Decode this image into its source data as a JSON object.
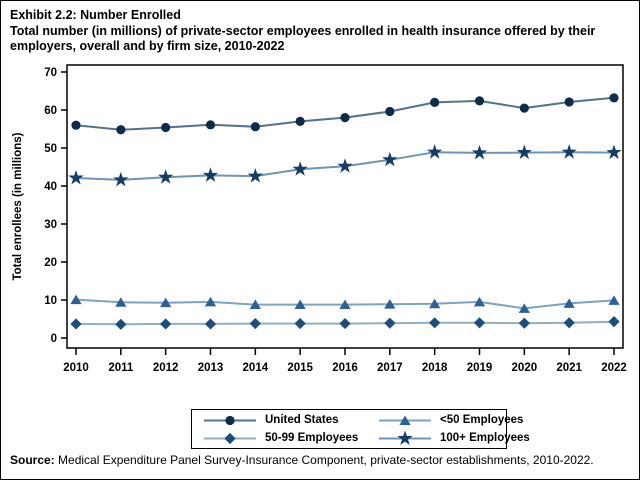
{
  "header": {
    "exhibit_title": "Exhibit 2.2: Number Enrolled",
    "subtitle": "Total number (in millions) of private-sector employees enrolled in health insurance offered by their employers, overall and by firm size, 2010-2022"
  },
  "source": {
    "label": "Source:",
    "text": " Medical Expenditure Panel Survey-Insurance Component, private-sector establishments, 2010-2022."
  },
  "legend": {
    "entries": [
      {
        "label": "United States",
        "marker": "circle"
      },
      {
        "label": "<50 Employees",
        "marker": "triangle"
      },
      {
        "label": "50-99 Employees",
        "marker": "diamond"
      },
      {
        "label": "100+ Employees",
        "marker": "star"
      }
    ]
  },
  "chart_data": {
    "type": "line",
    "title": "Exhibit 2.2: Number Enrolled",
    "xlabel": "",
    "ylabel": "Total enrollees (in millions)",
    "x": [
      2010,
      2011,
      2012,
      2013,
      2014,
      2015,
      2016,
      2017,
      2018,
      2019,
      2020,
      2021,
      2022
    ],
    "ylim": [
      0,
      70
    ],
    "ytick_interval": 10,
    "grid": false,
    "legend_position": "bottom",
    "series": [
      {
        "name": "United States",
        "marker": "circle",
        "marker_color": "#0e2c49",
        "line_color": "#51718e",
        "values": [
          56.0,
          54.8,
          55.4,
          56.1,
          55.6,
          57.0,
          58.0,
          59.6,
          62.0,
          62.4,
          60.5,
          62.1,
          63.2
        ]
      },
      {
        "name": "50-99 Employees",
        "marker": "diamond",
        "marker_color": "#1c4e7b",
        "line_color": "#8fafc4",
        "values": [
          3.7,
          3.6,
          3.7,
          3.7,
          3.8,
          3.8,
          3.8,
          3.9,
          4.0,
          4.0,
          3.9,
          4.0,
          4.3
        ]
      },
      {
        "name": "<50 Employees",
        "marker": "triangle",
        "marker_color": "#2e6095",
        "line_color": "#7aa3c6",
        "values": [
          10.1,
          9.4,
          9.3,
          9.5,
          8.8,
          8.8,
          8.8,
          8.9,
          9.0,
          9.5,
          7.8,
          9.1,
          9.9
        ]
      },
      {
        "name": "100+ Employees",
        "marker": "star",
        "marker_color": "#143e66",
        "line_color": "#6e94b3",
        "values": [
          42.1,
          41.6,
          42.3,
          42.8,
          42.6,
          44.4,
          45.2,
          46.9,
          48.9,
          48.7,
          48.8,
          48.9,
          48.8
        ]
      }
    ]
  }
}
